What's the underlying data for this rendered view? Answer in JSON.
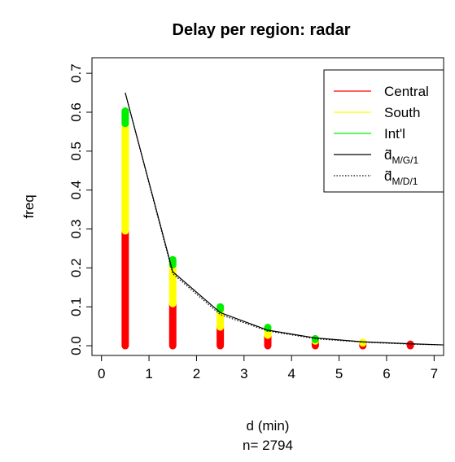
{
  "chart_data": {
    "type": "bar",
    "title": "Delay per region: radar",
    "xlabel": "d (min)",
    "ylabel": "freq",
    "footnote": "n= 2794",
    "xlim": [
      -0.2,
      7.2
    ],
    "ylim": [
      -0.025,
      0.74
    ],
    "x_ticks": [
      "0",
      "1",
      "2",
      "3",
      "4",
      "5",
      "6",
      "7"
    ],
    "y_ticks": [
      "0.0",
      "0.1",
      "0.2",
      "0.3",
      "0.4",
      "0.5",
      "0.6",
      "0.7"
    ],
    "x": [
      0.5,
      1.5,
      2.5,
      3.5,
      4.5,
      5.5,
      6.5
    ],
    "stacked": true,
    "series": [
      {
        "name": "Central",
        "color": "#ff0000",
        "values": [
          0.295,
          0.108,
          0.048,
          0.027,
          0.012,
          0.007,
          0.004
        ]
      },
      {
        "name": "South",
        "color": "#ffff00",
        "values": [
          0.276,
          0.1,
          0.046,
          0.018,
          0.005,
          0.002,
          0.0
        ]
      },
      {
        "name": "Int'l",
        "color": "#00ee00",
        "values": [
          0.032,
          0.013,
          0.006,
          0.002,
          0.001,
          0.0,
          0.0
        ]
      }
    ],
    "lines": [
      {
        "name": "d̃",
        "subscript": "M/G/1",
        "style": "solid",
        "color": "#000000",
        "x": [
          0.5,
          1.5,
          2.5,
          3.5,
          4.5,
          5.5,
          6.5,
          7.5
        ],
        "y": [
          0.65,
          0.19,
          0.085,
          0.04,
          0.02,
          0.01,
          0.005,
          0.002
        ]
      },
      {
        "name": "d̃",
        "subscript": "M/D/1",
        "style": "dotted",
        "color": "#000000",
        "x": [
          0.5,
          1.5,
          2.5,
          3.5,
          4.5,
          5.5,
          6.5,
          7.5
        ],
        "y": [
          0.65,
          0.185,
          0.08,
          0.038,
          0.018,
          0.009,
          0.004,
          0.002
        ]
      }
    ],
    "legend_position": "top-right",
    "grid": false
  }
}
